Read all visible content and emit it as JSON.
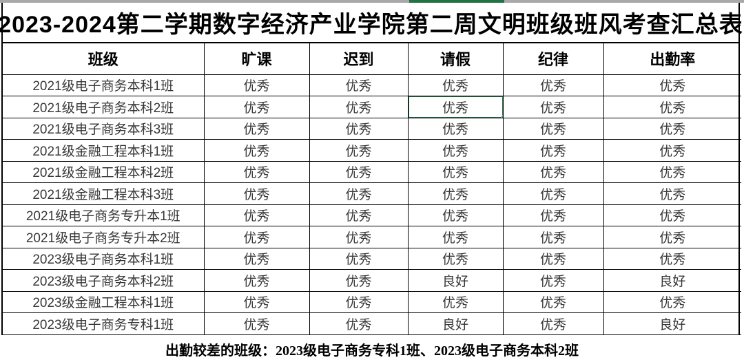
{
  "page": {
    "title": "2023-2024第二学期数字经济产业学院第二周文明班级班风考查汇总表"
  },
  "table": {
    "columns": [
      "班级",
      "旷课",
      "迟到",
      "请假",
      "纪律",
      "出勤率"
    ],
    "rows": [
      {
        "label": "2021级电子商务本科1班",
        "values": [
          "优秀",
          "优秀",
          "优秀",
          "优秀",
          "优秀"
        ]
      },
      {
        "label": "2021级电子商务本科2班",
        "values": [
          "优秀",
          "优秀",
          "优秀",
          "优秀",
          "优秀"
        ]
      },
      {
        "label": "2021级电子商务本科3班",
        "values": [
          "优秀",
          "优秀",
          "优秀",
          "优秀",
          "优秀"
        ]
      },
      {
        "label": "2021级金融工程本科1班",
        "values": [
          "优秀",
          "优秀",
          "优秀",
          "优秀",
          "优秀"
        ]
      },
      {
        "label": "2021级金融工程本科2班",
        "values": [
          "优秀",
          "优秀",
          "优秀",
          "优秀",
          "优秀"
        ]
      },
      {
        "label": "2021级金融工程本科3班",
        "values": [
          "优秀",
          "优秀",
          "优秀",
          "优秀",
          "优秀"
        ]
      },
      {
        "label": "2021级电子商务专升本1班",
        "values": [
          "优秀",
          "优秀",
          "优秀",
          "优秀",
          "优秀"
        ]
      },
      {
        "label": "2021级电子商务专升本2班",
        "values": [
          "优秀",
          "优秀",
          "优秀",
          "优秀",
          "优秀"
        ]
      },
      {
        "label": "2023级电子商务本科1班",
        "values": [
          "优秀",
          "优秀",
          "优秀",
          "优秀",
          "优秀"
        ]
      },
      {
        "label": "2023级电子商务本科2班",
        "values": [
          "优秀",
          "优秀",
          "良好",
          "优秀",
          "良好"
        ]
      },
      {
        "label": "2023级金融工程本科1班",
        "values": [
          "优秀",
          "优秀",
          "优秀",
          "优秀",
          "优秀"
        ]
      },
      {
        "label": "2023级电子商务专科1班",
        "values": [
          "优秀",
          "优秀",
          "良好",
          "优秀",
          "良好"
        ]
      }
    ]
  },
  "selection": {
    "row_index": 1,
    "col_index": 3,
    "color": "#217346"
  },
  "footer": {
    "note": "出勤较差的班级：2023级电子商务专科1班、2023级电子商务本科2班"
  },
  "colors": {
    "selection_green": "#217346",
    "grid_line": "#000000",
    "data_text": "#373737",
    "top_strip_gray": "#a9a9a9"
  }
}
